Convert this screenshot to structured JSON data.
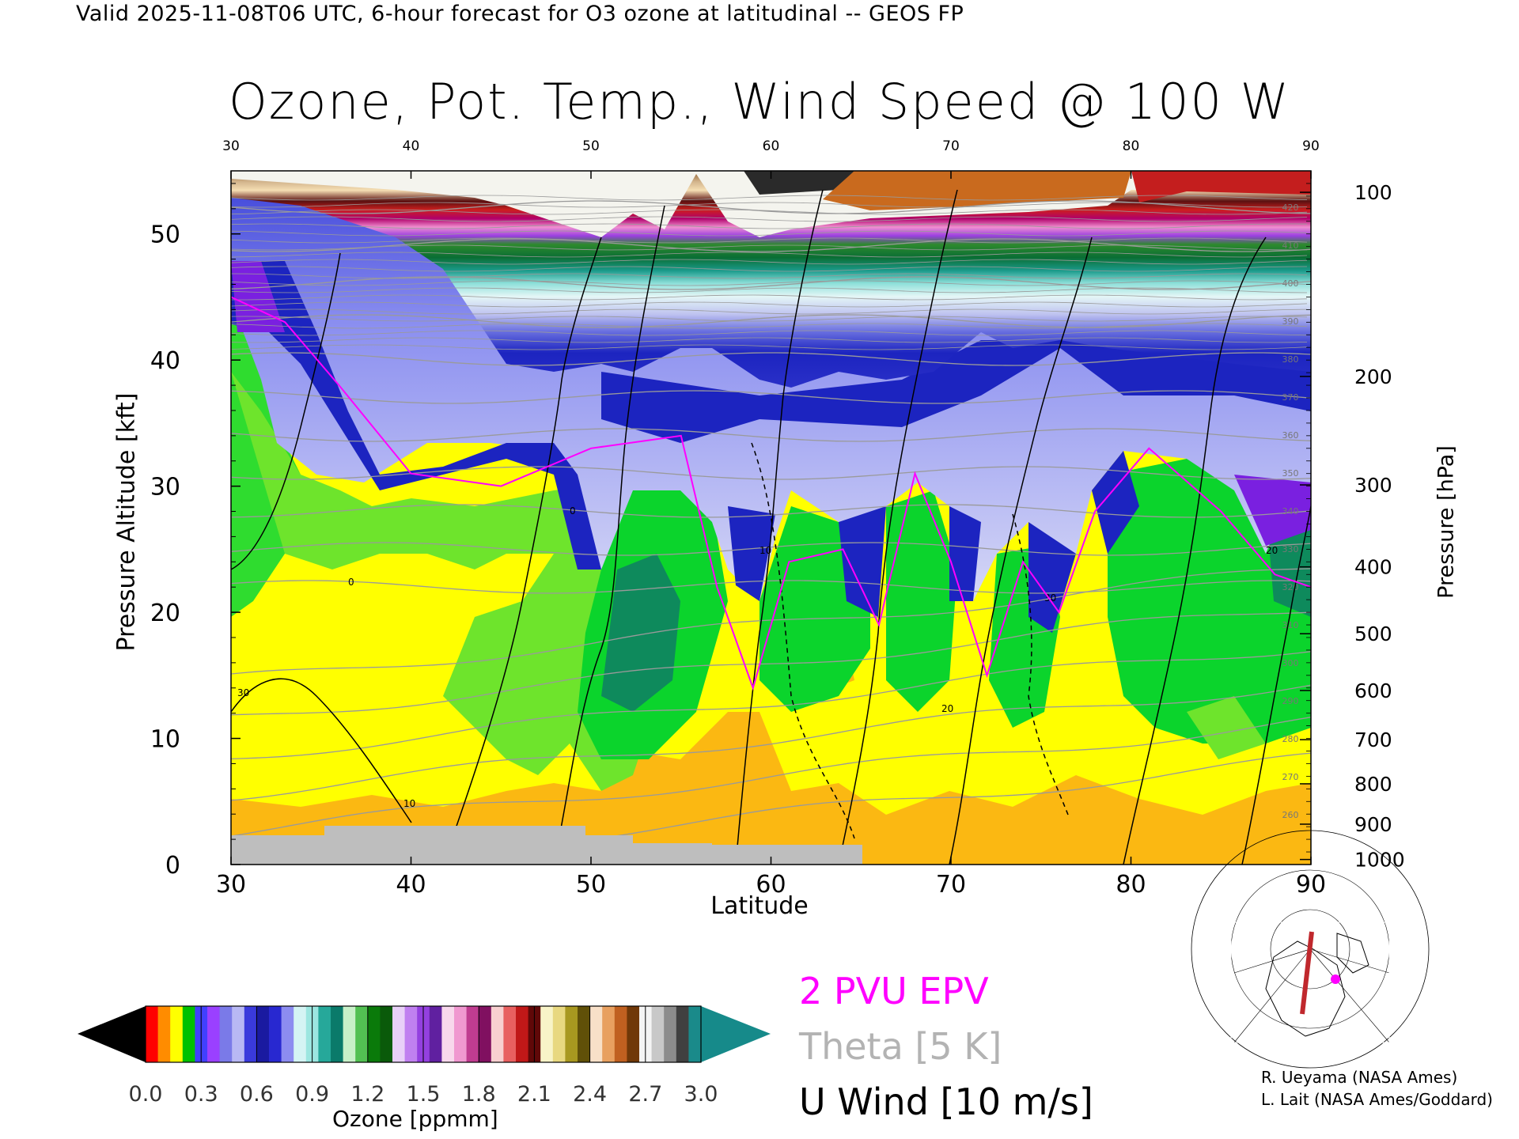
{
  "header": {
    "valid_line": "Valid 2025-11-08T06 UTC, 6-hour forecast for O3 ozone at latitudinal -- GEOS FP",
    "title": "Ozone, Pot. Temp., Wind Speed @ 100 W"
  },
  "chart_data": {
    "type": "heatmap",
    "title": "Ozone, Pot. Temp., Wind Speed @ 100 W",
    "xlabel": "Latitude",
    "ylabel_left": "Pressure Altitude [kft]",
    "ylabel_right": "Pressure [hPa]",
    "xlim": [
      30,
      90
    ],
    "ylim": [
      0,
      55
    ],
    "x_ticks": [
      "30",
      "40",
      "50",
      "60",
      "70",
      "80",
      "90"
    ],
    "y_ticks_left": [
      "0",
      "10",
      "20",
      "30",
      "40",
      "50"
    ],
    "y_ticks_right": [
      {
        "label": "100",
        "kft": 53.3
      },
      {
        "label": "200",
        "kft": 38.7
      },
      {
        "label": "300",
        "kft": 30.1
      },
      {
        "label": "400",
        "kft": 23.6
      },
      {
        "label": "500",
        "kft": 18.3
      },
      {
        "label": "600",
        "kft": 13.8
      },
      {
        "label": "700",
        "kft": 9.9
      },
      {
        "label": "800",
        "kft": 6.4
      },
      {
        "label": "900",
        "kft": 3.2
      },
      {
        "label": "1000",
        "kft": 0.4
      }
    ],
    "tropopause_2pvu_kft": [
      {
        "lat": 30,
        "kft": 45
      },
      {
        "lat": 33,
        "kft": 43
      },
      {
        "lat": 36,
        "kft": 38
      },
      {
        "lat": 40,
        "kft": 31
      },
      {
        "lat": 45,
        "kft": 30
      },
      {
        "lat": 50,
        "kft": 33
      },
      {
        "lat": 55,
        "kft": 34
      },
      {
        "lat": 57,
        "kft": 22
      },
      {
        "lat": 59,
        "kft": 14
      },
      {
        "lat": 61,
        "kft": 24
      },
      {
        "lat": 64,
        "kft": 25
      },
      {
        "lat": 66,
        "kft": 19
      },
      {
        "lat": 68,
        "kft": 31
      },
      {
        "lat": 70,
        "kft": 24
      },
      {
        "lat": 72,
        "kft": 15
      },
      {
        "lat": 74,
        "kft": 24
      },
      {
        "lat": 76,
        "kft": 20
      },
      {
        "lat": 78,
        "kft": 28
      },
      {
        "lat": 81,
        "kft": 33
      },
      {
        "lat": 85,
        "kft": 28
      },
      {
        "lat": 88,
        "kft": 23
      },
      {
        "lat": 90,
        "kft": 22
      }
    ],
    "theta_labels": [
      "420",
      "410",
      "400",
      "390",
      "380",
      "370",
      "360",
      "350",
      "340",
      "330",
      "320",
      "310",
      "300",
      "290",
      "280",
      "270",
      "260"
    ],
    "u_wind_labels": [
      "0",
      "10",
      "20",
      "30"
    ],
    "colorbar": {
      "ticks": [
        "0.0",
        "0.3",
        "0.6",
        "0.9",
        "1.2",
        "1.5",
        "1.8",
        "2.1",
        "2.4",
        "2.7",
        "3.0"
      ],
      "title": "Ozone [ppmm]"
    },
    "legend": [
      "2 PVU EPV",
      "Theta [5 K]",
      "U Wind [10 m/s]"
    ]
  },
  "colors": {
    "epv": "#ff00ff",
    "theta": "#b3b3b3",
    "uwind": "#000000",
    "ground": "#bebebe",
    "inset_track": "#c0282d"
  },
  "credits": {
    "line1": "R. Ueyama (NASA Ames)",
    "line2": "L. Lait (NASA Ames/Goddard)"
  }
}
